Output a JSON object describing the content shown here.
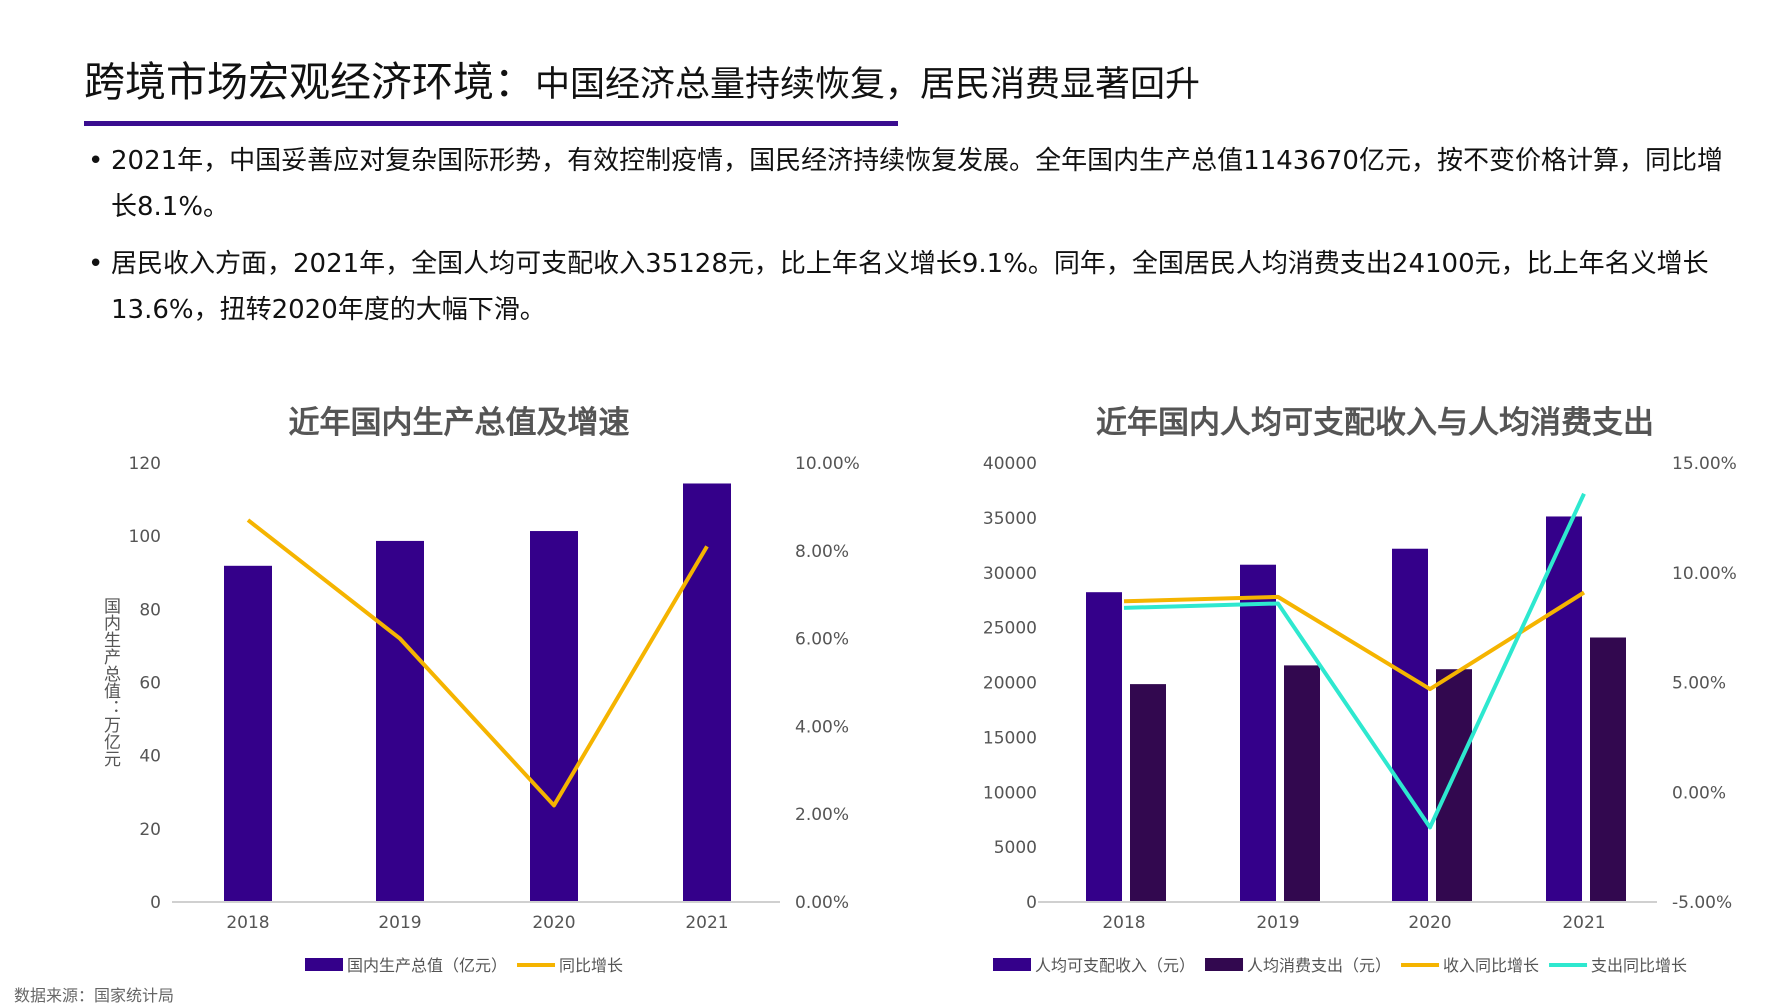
{
  "header": {
    "title_main": "跨境市场宏观经济环境：",
    "title_sub": "中国经济总量持续恢复，居民消费显著回升",
    "rule_color": "#3a0d8f"
  },
  "bullets": [
    "2021年，中国妥善应对复杂国际形势，有效控制疫情，国民经济持续恢复发展。全年国内生产总值1143670亿元，按不变价格计算，同比增长8.1%。",
    "居民收入方面，2021年，全国人均可支配收入35128元，比上年名义增长9.1%。同年，全国居民人均消费支出24100元，比上年名义增长13.6%，扭转2020年度的大幅下滑。"
  ],
  "source": "数据来源：国家统计局",
  "chart_data": [
    {
      "type": "bar+line",
      "title": "近年国内生产总值及增速",
      "categories": [
        "2018",
        "2019",
        "2020",
        "2021"
      ],
      "ylabel": "国内生产总值：万亿元",
      "ylim": [
        0,
        120
      ],
      "yticks": [
        "0",
        "20",
        "40",
        "60",
        "80",
        "100",
        "120"
      ],
      "y2lim": [
        0,
        10
      ],
      "y2ticks": [
        "0.00%",
        "2.00%",
        "4.00%",
        "6.00%",
        "8.00%",
        "10.00%"
      ],
      "series": [
        {
          "name": "国内生产总值（亿元）",
          "kind": "bar",
          "axis": "left",
          "color": "#34008a",
          "values": [
            91.9,
            98.7,
            101.4,
            114.4
          ]
        },
        {
          "name": "同比增长",
          "kind": "line",
          "axis": "right",
          "color": "#f5b400",
          "values": [
            8.7,
            6.0,
            2.2,
            8.1
          ]
        }
      ],
      "legend": "bottom",
      "grid": false
    },
    {
      "type": "bar+line",
      "title": "近年国内人均可支配收入与人均消费支出",
      "categories": [
        "2018",
        "2019",
        "2020",
        "2021"
      ],
      "ylim": [
        0,
        40000
      ],
      "yticks": [
        "0",
        "5000",
        "10000",
        "15000",
        "20000",
        "25000",
        "30000",
        "35000",
        "40000"
      ],
      "y2lim": [
        -5,
        15
      ],
      "y2ticks": [
        "-5.00%",
        "0.00%",
        "5.00%",
        "10.00%",
        "15.00%"
      ],
      "series": [
        {
          "name": "人均可支配收入（元）",
          "kind": "bar",
          "axis": "left",
          "color": "#34008a",
          "values": [
            28228,
            30733,
            32189,
            35128
          ]
        },
        {
          "name": "人均消费支出（元）",
          "kind": "bar",
          "axis": "left",
          "color": "#32084f",
          "values": [
            19853,
            21559,
            21210,
            24100
          ]
        },
        {
          "name": "收入同比增长",
          "kind": "line",
          "axis": "right",
          "color": "#f5b400",
          "values": [
            8.7,
            8.9,
            4.7,
            9.1
          ]
        },
        {
          "name": "支出同比增长",
          "kind": "line",
          "axis": "right",
          "color": "#2ee8cf",
          "values": [
            8.4,
            8.6,
            -1.6,
            13.6
          ]
        }
      ],
      "legend": "bottom",
      "grid": false
    }
  ]
}
